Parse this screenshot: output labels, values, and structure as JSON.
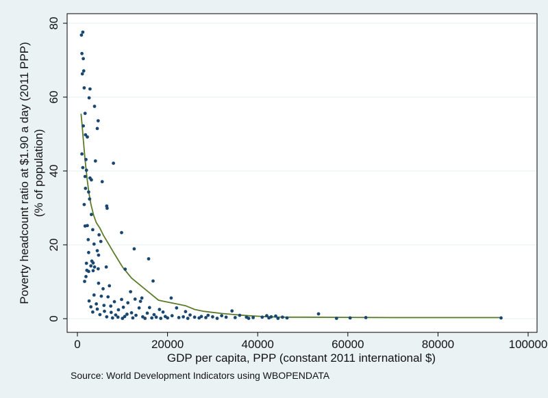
{
  "chart_data": {
    "type": "scatter",
    "title": "",
    "xlabel": "GDP per capita, PPP (constant 2011 international $)",
    "ylabel_line1": "Poverty headcount ratio at $1.90 a day (2011 PPP)",
    "ylabel_line2": "(% of population)",
    "note": "Source: World Development Indicators using WBOPENDATA",
    "xlim": [
      0,
      100000
    ],
    "ylim": [
      0,
      80
    ],
    "x_ticks": [
      0,
      20000,
      40000,
      60000,
      80000,
      100000
    ],
    "x_tick_labels": [
      "0",
      "20000",
      "40000",
      "60000",
      "80000",
      "100000"
    ],
    "y_ticks": [
      0,
      20,
      40,
      60,
      80
    ],
    "y_tick_labels": [
      "0",
      "20",
      "40",
      "60",
      "80"
    ],
    "grid": "horizontal",
    "colors": {
      "background": "#eaf2f3",
      "plot_background": "#ffffff",
      "points": "#1a476f",
      "fit_line": "#5b7b2a",
      "grid": "#eaf2f3"
    },
    "series": [
      {
        "type": "scatter",
        "points": [
          [
            900,
            76.8
          ],
          [
            1200,
            77.6
          ],
          [
            1000,
            71.8
          ],
          [
            1300,
            70.4
          ],
          [
            1100,
            66.3
          ],
          [
            1400,
            67.1
          ],
          [
            1500,
            62.5
          ],
          [
            2800,
            62.2
          ],
          [
            2600,
            59.8
          ],
          [
            3800,
            57.5
          ],
          [
            1700,
            55.6
          ],
          [
            4600,
            53.6
          ],
          [
            1300,
            52.2
          ],
          [
            4400,
            51.5
          ],
          [
            1800,
            49.8
          ],
          [
            2200,
            49.2
          ],
          [
            1000,
            44.6
          ],
          [
            1900,
            43.1
          ],
          [
            4000,
            42.7
          ],
          [
            8000,
            42.1
          ],
          [
            1200,
            40.9
          ],
          [
            2000,
            40.2
          ],
          [
            1700,
            38.5
          ],
          [
            2800,
            38.1
          ],
          [
            3100,
            37.6
          ],
          [
            5500,
            37.1
          ],
          [
            1800,
            35.3
          ],
          [
            2500,
            34.3
          ],
          [
            2700,
            32.4
          ],
          [
            1500,
            30.9
          ],
          [
            6500,
            30.5
          ],
          [
            6600,
            29.9
          ],
          [
            3100,
            28.2
          ],
          [
            1700,
            25.1
          ],
          [
            2200,
            25.2
          ],
          [
            3400,
            24.1
          ],
          [
            4800,
            22.7
          ],
          [
            9800,
            23.3
          ],
          [
            2400,
            21.4
          ],
          [
            5200,
            20.9
          ],
          [
            3700,
            20.2
          ],
          [
            12600,
            18.9
          ],
          [
            4400,
            18.4
          ],
          [
            2500,
            17.9
          ],
          [
            4700,
            17.2
          ],
          [
            3200,
            15.6
          ],
          [
            3500,
            15.1
          ],
          [
            15800,
            16.2
          ],
          [
            2000,
            15.0
          ],
          [
            3000,
            14.3
          ],
          [
            3800,
            14.0
          ],
          [
            2100,
            13.1
          ],
          [
            4600,
            13.5
          ],
          [
            6400,
            14.0
          ],
          [
            10600,
            13.4
          ],
          [
            2500,
            12.8
          ],
          [
            3500,
            13.0
          ],
          [
            1600,
            10.1
          ],
          [
            16800,
            10.2
          ],
          [
            1900,
            11.4
          ],
          [
            7100,
            8.9
          ],
          [
            4700,
            9.6
          ],
          [
            5700,
            8.1
          ],
          [
            11800,
            7.3
          ],
          [
            3700,
            6.4
          ],
          [
            5300,
            6.1
          ],
          [
            6800,
            5.9
          ],
          [
            9800,
            5.2
          ],
          [
            12800,
            5.3
          ],
          [
            14300,
            5.6
          ],
          [
            20800,
            5.6
          ],
          [
            2600,
            4.8
          ],
          [
            8200,
            4.6
          ],
          [
            11200,
            4.3
          ],
          [
            14000,
            4.7
          ],
          [
            4200,
            4.0
          ],
          [
            5900,
            3.6
          ],
          [
            3000,
            3.2
          ],
          [
            7400,
            3.4
          ],
          [
            10200,
            3.1
          ],
          [
            13700,
            2.9
          ],
          [
            16000,
            3.0
          ],
          [
            22000,
            2.9
          ],
          [
            4400,
            2.6
          ],
          [
            9100,
            2.4
          ],
          [
            18200,
            2.5
          ],
          [
            3400,
            1.8
          ],
          [
            6000,
            2.0
          ],
          [
            7500,
            1.7
          ],
          [
            12000,
            1.6
          ],
          [
            15500,
            1.5
          ],
          [
            19000,
            1.8
          ],
          [
            24000,
            1.9
          ],
          [
            34300,
            2.1
          ],
          [
            53500,
            1.3
          ],
          [
            5000,
            1.1
          ],
          [
            8500,
            1.0
          ],
          [
            11000,
            1.2
          ],
          [
            13000,
            0.9
          ],
          [
            17000,
            1.1
          ],
          [
            21000,
            0.8
          ],
          [
            25000,
            1.0
          ],
          [
            29000,
            0.9
          ],
          [
            32000,
            0.8
          ],
          [
            36000,
            0.9
          ],
          [
            42000,
            0.8
          ],
          [
            6500,
            0.5
          ],
          [
            9000,
            0.4
          ],
          [
            10500,
            0.6
          ],
          [
            14500,
            0.5
          ],
          [
            17500,
            0.4
          ],
          [
            19500,
            0.6
          ],
          [
            22500,
            0.3
          ],
          [
            23500,
            0.5
          ],
          [
            26000,
            0.4
          ],
          [
            27500,
            0.6
          ],
          [
            28500,
            0.3
          ],
          [
            30000,
            0.5
          ],
          [
            33000,
            0.4
          ],
          [
            35000,
            0.3
          ],
          [
            37500,
            0.4
          ],
          [
            39000,
            0.3
          ],
          [
            41000,
            0.4
          ],
          [
            43000,
            0.5
          ],
          [
            44000,
            0.7
          ],
          [
            45500,
            0.4
          ],
          [
            7800,
            0.2
          ],
          [
            10000,
            0.1
          ],
          [
            12300,
            0.2
          ],
          [
            15000,
            0.1
          ],
          [
            16500,
            0.2
          ],
          [
            18500,
            0.1
          ],
          [
            20000,
            0.2
          ],
          [
            24500,
            0.1
          ],
          [
            27000,
            0.2
          ],
          [
            31000,
            0.1
          ],
          [
            38000,
            0.1
          ],
          [
            42500,
            0.2
          ],
          [
            44500,
            0.1
          ],
          [
            46500,
            0.2
          ],
          [
            57500,
            0.1
          ],
          [
            60500,
            0.2
          ],
          [
            64000,
            0.3
          ],
          [
            94000,
            0.2
          ]
        ]
      },
      {
        "type": "line",
        "points": [
          [
            800,
            55.5
          ],
          [
            1000,
            53.0
          ],
          [
            1300,
            48.5
          ],
          [
            1700,
            43.0
          ],
          [
            2100,
            38.5
          ],
          [
            2500,
            34.5
          ],
          [
            3000,
            31.0
          ],
          [
            3600,
            28.0
          ],
          [
            4200,
            26.0
          ],
          [
            5000,
            24.5
          ],
          [
            5800,
            22.5
          ],
          [
            6800,
            20.5
          ],
          [
            8000,
            18.0
          ],
          [
            9000,
            16.0
          ],
          [
            10000,
            14.0
          ],
          [
            11000,
            12.5
          ],
          [
            12000,
            11.0
          ],
          [
            13500,
            9.5
          ],
          [
            15000,
            8.0
          ],
          [
            16500,
            6.5
          ],
          [
            18000,
            5.0
          ],
          [
            20000,
            4.5
          ],
          [
            22000,
            4.0
          ],
          [
            24000,
            3.5
          ],
          [
            26000,
            2.5
          ],
          [
            28000,
            2.0
          ],
          [
            30000,
            1.7
          ],
          [
            32000,
            1.4
          ],
          [
            35000,
            1.1
          ],
          [
            38000,
            0.8
          ],
          [
            41000,
            0.6
          ],
          [
            44000,
            0.45
          ],
          [
            47000,
            0.4
          ],
          [
            50000,
            0.4
          ],
          [
            60000,
            0.35
          ],
          [
            70000,
            0.3
          ],
          [
            80000,
            0.3
          ],
          [
            94000,
            0.3
          ]
        ]
      }
    ]
  }
}
